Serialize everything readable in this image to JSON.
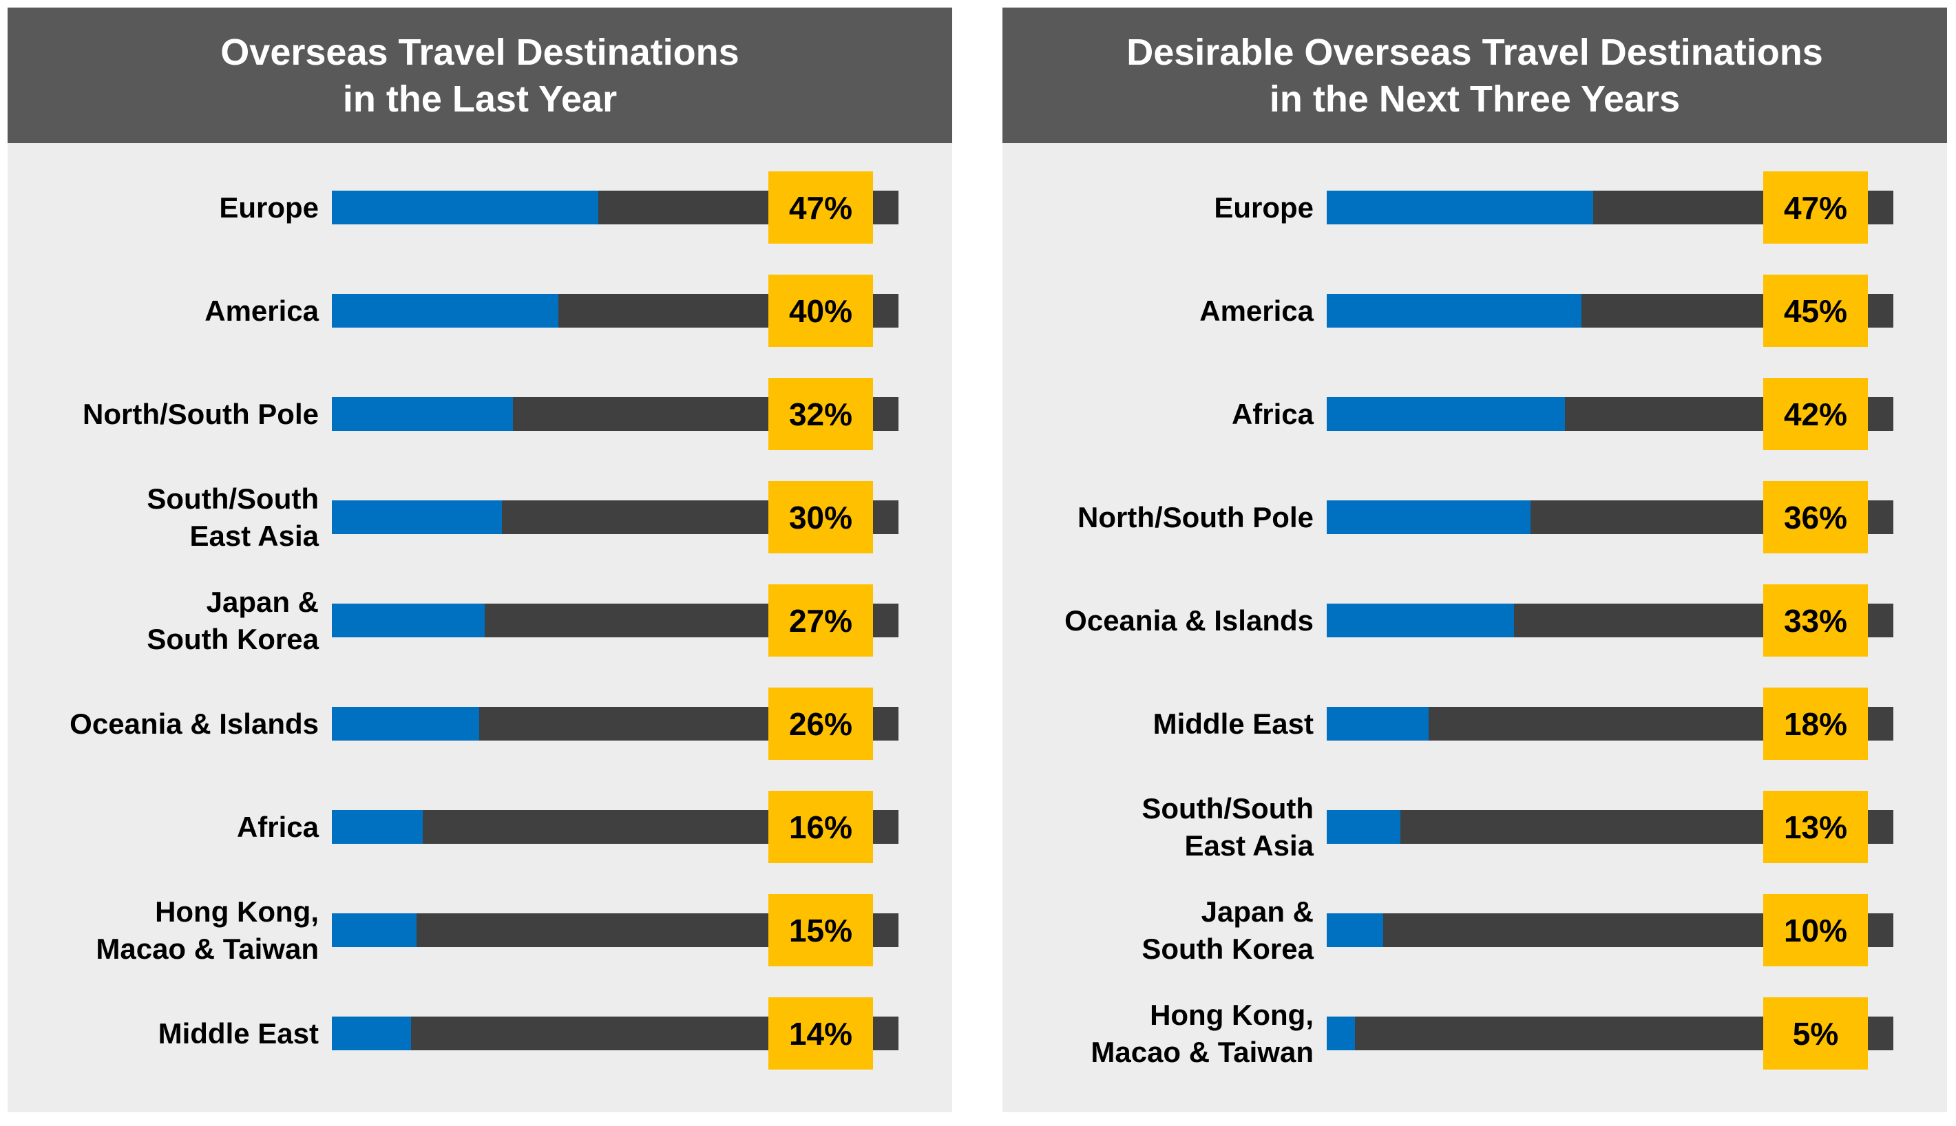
{
  "colors": {
    "header": "#595959",
    "panel": "#ededed",
    "bar": "#0070c0",
    "track": "#404040",
    "value_box": "#ffc000"
  },
  "chart_data": [
    {
      "type": "bar",
      "orientation": "horizontal",
      "title": "Overseas Travel Destinations\nin the Last Year",
      "unit": "%",
      "xlim": [
        0,
        100
      ],
      "categories": [
        "Europe",
        "America",
        "North/South Pole",
        "South/South\nEast Asia",
        "Japan &\nSouth Korea",
        "Oceania & Islands",
        "Africa",
        "Hong Kong,\nMacao & Taiwan",
        "Middle East"
      ],
      "values": [
        47,
        40,
        32,
        30,
        27,
        26,
        16,
        15,
        14
      ],
      "labels": [
        "47%",
        "40%",
        "32%",
        "30%",
        "27%",
        "26%",
        "16%",
        "15%",
        "14%"
      ]
    },
    {
      "type": "bar",
      "orientation": "horizontal",
      "title": "Desirable Overseas Travel Destinations\nin the Next Three Years",
      "unit": "%",
      "xlim": [
        0,
        100
      ],
      "categories": [
        "Europe",
        "America",
        "Africa",
        "North/South Pole",
        "Oceania & Islands",
        "Middle East",
        "South/South\nEast Asia",
        "Japan &\nSouth Korea",
        "Hong Kong,\nMacao & Taiwan"
      ],
      "values": [
        47,
        45,
        42,
        36,
        33,
        18,
        13,
        10,
        5
      ],
      "labels": [
        "47%",
        "45%",
        "42%",
        "36%",
        "33%",
        "18%",
        "13%",
        "10%",
        "5%"
      ]
    }
  ]
}
